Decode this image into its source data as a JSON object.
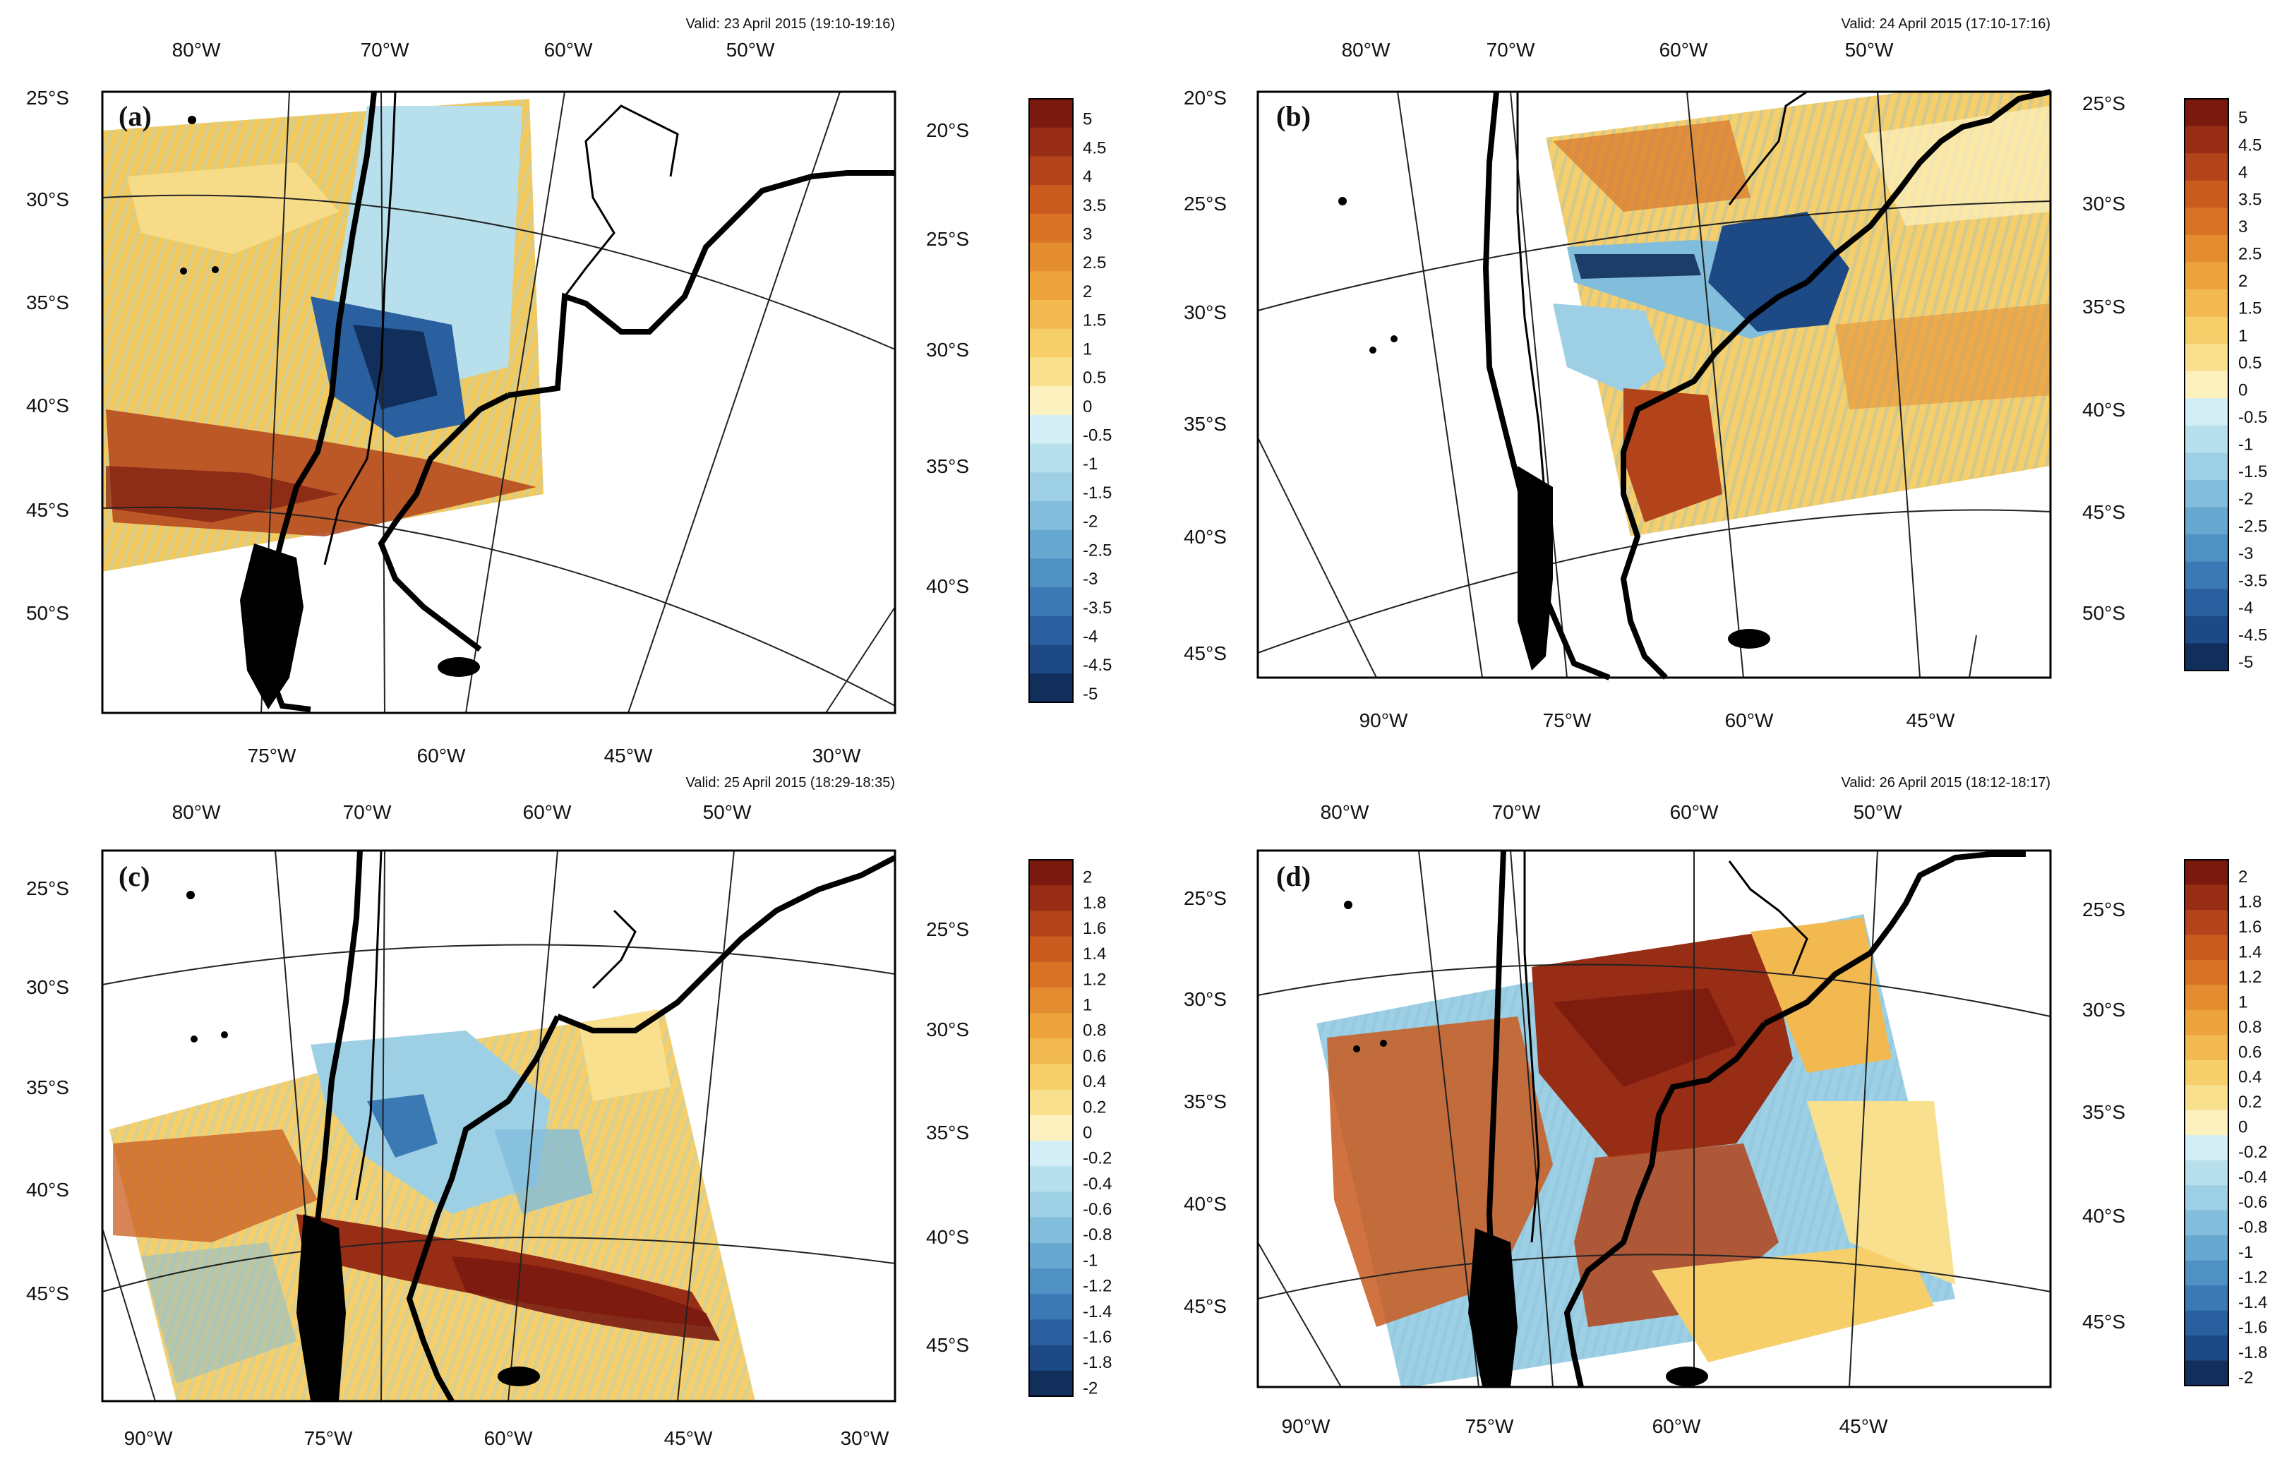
{
  "panels": [
    {
      "id": "a",
      "label": "(a)",
      "valid": "Valid: 23 April 2015 (19:10-19:16)",
      "top_lon": [
        "80°W",
        "70°W",
        "60°W",
        "50°W"
      ],
      "bottom_lon": [
        "75°W",
        "60°W",
        "45°W",
        "30°W"
      ],
      "left_lat": [
        "25°S",
        "30°S",
        "35°S",
        "40°S",
        "45°S",
        "50°S"
      ],
      "right_lat": [
        "20°S",
        "25°S",
        "30°S",
        "35°S",
        "40°S"
      ],
      "colorbar_labels": [
        "5",
        "4.5",
        "4",
        "3.5",
        "3",
        "2.5",
        "2",
        "1.5",
        "1",
        "0.5",
        "0",
        "-0.5",
        "-1",
        "-1.5",
        "-2",
        "-2.5",
        "-3",
        "-3.5",
        "-4",
        "-4.5",
        "-5"
      ]
    },
    {
      "id": "b",
      "label": "(b)",
      "valid": "Valid: 24 April 2015 (17:10-17:16)",
      "top_lon": [
        "80°W",
        "70°W",
        "60°W",
        "50°W"
      ],
      "bottom_lon": [
        "90°W",
        "75°W",
        "60°W",
        "45°W"
      ],
      "left_lat": [
        "20°S",
        "25°S",
        "30°S",
        "35°S",
        "40°S",
        "45°S"
      ],
      "right_lat": [
        "25°S",
        "30°S",
        "35°S",
        "40°S",
        "45°S",
        "50°S"
      ],
      "colorbar_labels": [
        "5",
        "4.5",
        "4",
        "3.5",
        "3",
        "2.5",
        "2",
        "1.5",
        "1",
        "0.5",
        "0",
        "-0.5",
        "-1",
        "-1.5",
        "-2",
        "-2.5",
        "-3",
        "-3.5",
        "-4",
        "-4.5",
        "-5"
      ]
    },
    {
      "id": "c",
      "label": "(c)",
      "valid": "Valid: 25 April 2015 (18:29-18:35)",
      "top_lon": [
        "80°W",
        "70°W",
        "60°W",
        "50°W"
      ],
      "bottom_lon": [
        "90°W",
        "75°W",
        "60°W",
        "45°W",
        "30°W"
      ],
      "left_lat": [
        "25°S",
        "30°S",
        "35°S",
        "40°S",
        "45°S"
      ],
      "right_lat": [
        "25°S",
        "30°S",
        "35°S",
        "40°S",
        "45°S"
      ],
      "colorbar_labels": [
        "2",
        "1.8",
        "1.6",
        "1.4",
        "1.2",
        "1",
        "0.8",
        "0.6",
        "0.4",
        "0.2",
        "0",
        "-0.2",
        "-0.4",
        "-0.6",
        "-0.8",
        "-1",
        "-1.2",
        "-1.4",
        "-1.6",
        "-1.8",
        "-2"
      ]
    },
    {
      "id": "d",
      "label": "(d)",
      "valid": "Valid: 26 April 2015 (18:12-18:17)",
      "top_lon": [
        "80°W",
        "70°W",
        "60°W",
        "50°W"
      ],
      "bottom_lon": [
        "90°W",
        "75°W",
        "60°W",
        "45°W"
      ],
      "left_lat": [
        "25°S",
        "30°S",
        "35°S",
        "40°S",
        "45°S"
      ],
      "right_lat": [
        "25°S",
        "30°S",
        "35°S",
        "40°S",
        "45°S"
      ],
      "colorbar_labels": [
        "2",
        "1.8",
        "1.6",
        "1.4",
        "1.2",
        "1",
        "0.8",
        "0.6",
        "0.4",
        "0.2",
        "0",
        "-0.2",
        "-0.4",
        "-0.6",
        "-0.8",
        "-1",
        "-1.2",
        "-1.4",
        "-1.6",
        "-1.8",
        "-2"
      ]
    }
  ],
  "colors": {
    "palette": [
      "#7a1a0f",
      "#962d14",
      "#b3431a",
      "#c95b1f",
      "#d87326",
      "#e48d30",
      "#eca33c",
      "#f1b94f",
      "#f6cf6a",
      "#f9e08e",
      "#fdf1c0",
      "#d4eef5",
      "#b7e0ec",
      "#9dd0e4",
      "#82bddb",
      "#67a8d0",
      "#4f91c3",
      "#3a79b3",
      "#2a609f",
      "#1d4985",
      "#122f5c"
    ],
    "land_border": "#000000"
  }
}
